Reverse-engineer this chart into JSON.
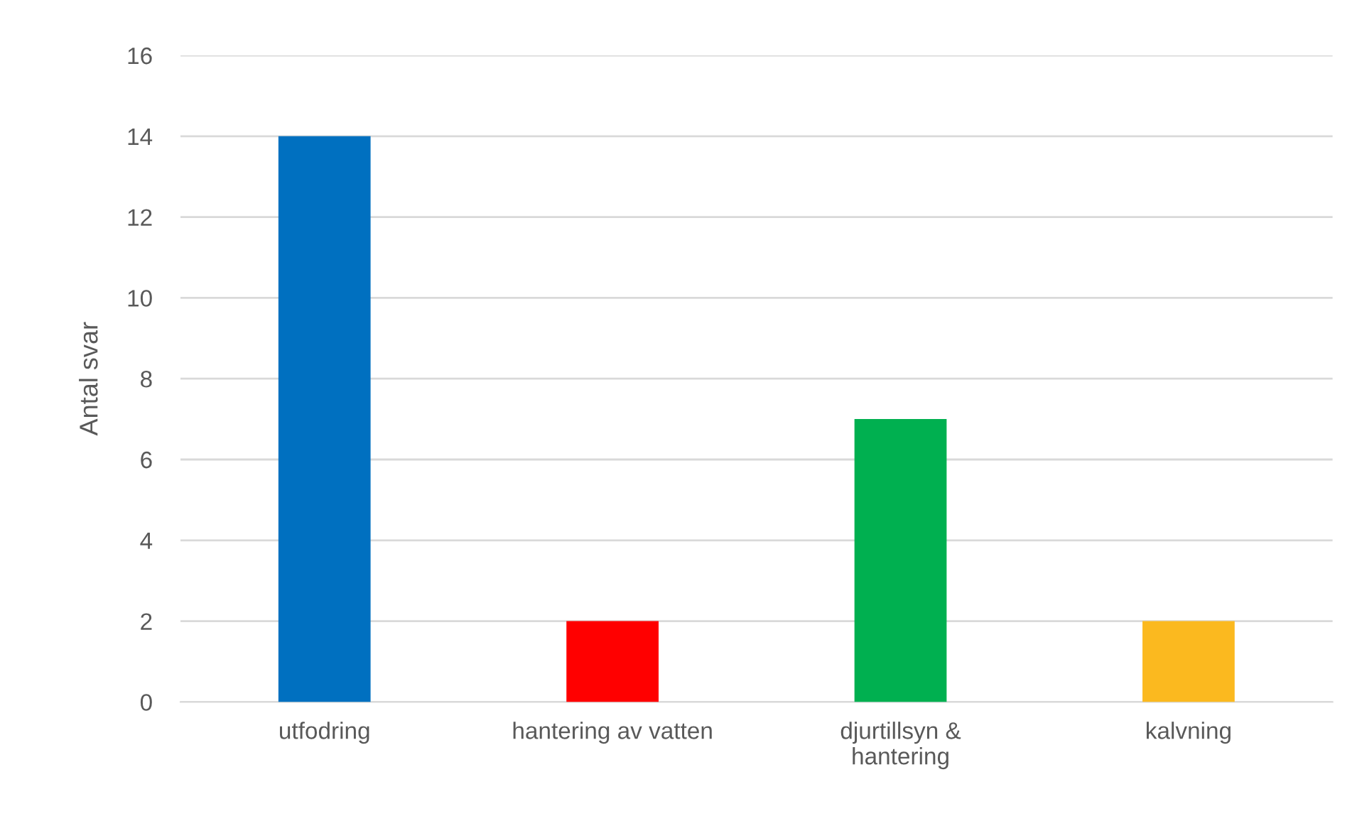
{
  "chart_data": {
    "type": "bar",
    "ylabel": "Antal svar",
    "categories": [
      "utfodring",
      "hantering av vatten",
      "djurtillsyn & hantering",
      "kalvning"
    ],
    "values": [
      14,
      2,
      7,
      2
    ],
    "colors": [
      "#0070c0",
      "#ff0000",
      "#00b050",
      "#fbb91f"
    ],
    "ylim": [
      0,
      16
    ],
    "yticks": [
      0,
      2,
      4,
      6,
      8,
      10,
      12,
      14,
      16
    ],
    "grid": "y"
  }
}
